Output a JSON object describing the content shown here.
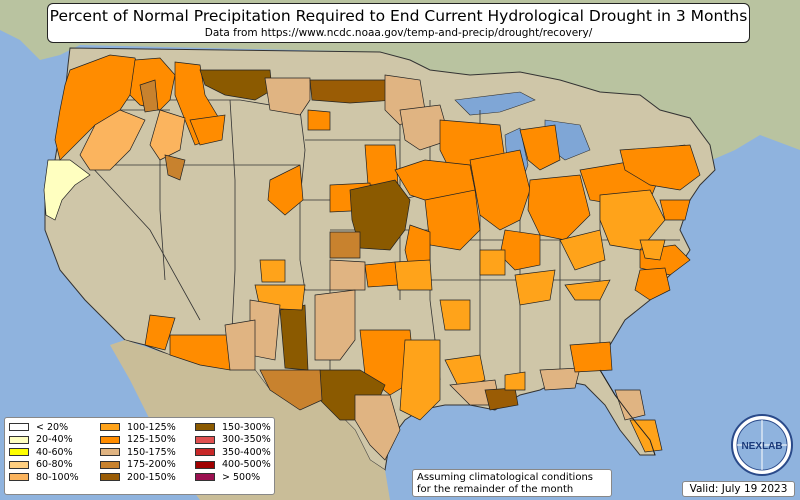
{
  "title": "Percent of Normal Precipitation Required to End Current Hydrological Drought in 3 Months",
  "subtitle": "Data from https://www.ncdc.noaa.gov/temp-and-precip/drought/recovery/",
  "legend": {
    "col1": [
      {
        "label": "< 20%",
        "color": "#ffffff"
      },
      {
        "label": "20-40%",
        "color": "#ffffc0"
      },
      {
        "label": "40-60%",
        "color": "#ffff00"
      },
      {
        "label": "60-80%",
        "color": "#ffcf80"
      },
      {
        "label": "80-100%",
        "color": "#fbb45e"
      }
    ],
    "col2": [
      {
        "label": "100-125%",
        "color": "#ffa31a"
      },
      {
        "label": "125-150%",
        "color": "#ff8c00"
      },
      {
        "label": "150-175%",
        "color": "#e0b482"
      },
      {
        "label": "175-200%",
        "color": "#c8822e"
      },
      {
        "label": "200-150%",
        "color": "#9a5c05"
      }
    ],
    "col3": [
      {
        "label": "150-300%",
        "color": "#8b5a00"
      },
      {
        "label": "300-350%",
        "color": "#e05050"
      },
      {
        "label": "350-400%",
        "color": "#c82828"
      },
      {
        "label": "400-500%",
        "color": "#a00000"
      },
      {
        "label": "> 500%",
        "color": "#9b1050"
      }
    ]
  },
  "note_line1": "Assuming climatological conditions",
  "note_line2": "for the remainder of the month",
  "valid_text": "Valid: July 19 2023",
  "logo_text": "NEXLAB",
  "colors": {
    "ocean": "#8fb3de",
    "land": "#cfc6a8",
    "canada": "#b9c3a0",
    "mexico": "#c9bd98",
    "lakes": "#7fa6d6",
    "c100": "#ffa31a",
    "c125": "#ff8c00",
    "c150": "#e0b482",
    "c175": "#c8822e",
    "c200": "#9a5c05",
    "c80": "#fbb45e",
    "c20": "#ffffc0"
  }
}
